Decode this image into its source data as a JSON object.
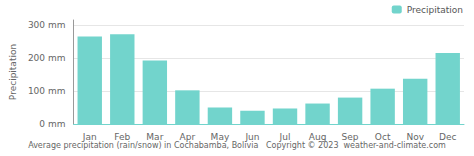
{
  "chart_data": {
    "type": "bar",
    "categories": [
      "Jan",
      "Feb",
      "Mar",
      "Apr",
      "May",
      "Jun",
      "Jul",
      "Aug",
      "Sep",
      "Oct",
      "Nov",
      "Dec"
    ],
    "series": [
      {
        "name": "Precipitation",
        "color": "#72d4cc",
        "values": [
          265,
          272,
          192,
          102,
          50,
          40,
          47,
          62,
          80,
          107,
          137,
          215
        ]
      }
    ],
    "ylabel": "Precipitation",
    "xlabel": "Average precipitation (rain/snow) in Cochabamba, Bolivia   Copyright © 2023  weather-and-climate.com",
    "ylim": [
      0,
      315
    ],
    "yticks": [
      {
        "value": 0,
        "label": "0 mm"
      },
      {
        "value": 100,
        "label": "100 mm"
      },
      {
        "value": 200,
        "label": "200 mm"
      },
      {
        "value": 300,
        "label": "300 mm"
      }
    ],
    "grid": true,
    "legend": "upper right"
  }
}
